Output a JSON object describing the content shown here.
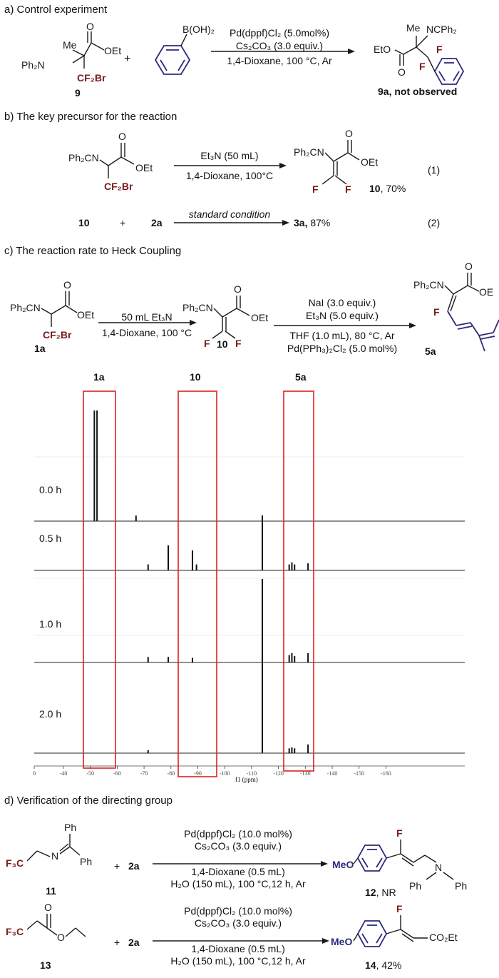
{
  "section_a": {
    "title": "a) Control experiment",
    "conditions": [
      "Pd(dppf)Cl₂ (5.0mol%)",
      "Cs₂CO₃ (3.0 equiv.)",
      "1,4-Dioxane, 100 °C, Ar"
    ],
    "reactant_label": "9",
    "product_label": "9a, not observed",
    "plus": "+"
  },
  "section_b": {
    "title": "b) The key precursor for the reaction",
    "eq1_conditions": [
      "Et₃N (50 mL)",
      "1,4-Dioxane, 100°C"
    ],
    "eq1_product_label": "10",
    "eq1_yield": ", 70%",
    "eq1_number": "(1)",
    "eq2_reactant1": "10",
    "eq2_plus": "+",
    "eq2_reactant2": "2a",
    "eq2_condition": "standard condition",
    "eq2_product": "3a,",
    "eq2_yield": " 87%",
    "eq2_number": "(2)"
  },
  "section_c": {
    "title": "c) The reaction rate to Heck Coupling",
    "step1_conditions": [
      "50 mL Et₃N",
      "1,4-Dioxane, 100 °C"
    ],
    "step2_conditions": [
      "NaI (3.0 equiv.)",
      "Et₃N (5.0 equiv.)",
      "THF (1.0 mL), 80 °C, Ar",
      "Pd(PPh₃)₂Cl₂ (5.0 mol%)"
    ],
    "labels": [
      "1a",
      "10",
      "5a"
    ]
  },
  "spectrum": {
    "column_labels": [
      "1a",
      "10",
      "5a"
    ],
    "times": [
      "0.0 h",
      "0.5 h",
      "1.0 h",
      "2.0 h"
    ],
    "xlabel": "f1 (ppm)",
    "ticks": [
      "0",
      "-40",
      "-50",
      "-60",
      "-70",
      "-80",
      "-90",
      "-100",
      "-110",
      "-120",
      "-130",
      "-140",
      "-150",
      "-160"
    ],
    "spectra": [
      {
        "time": "0.0 h",
        "peaks": [
          {
            "ppm": -51.5,
            "h": 1.0
          },
          {
            "ppm": -52.5,
            "h": 1.0
          },
          {
            "ppm": -67,
            "h": 0.05
          }
        ]
      },
      {
        "time": "0.5 h",
        "peaks": [
          {
            "ppm": -71.5,
            "h": 0.06
          },
          {
            "ppm": -79,
            "h": 0.25
          },
          {
            "ppm": -88,
            "h": 0.2
          },
          {
            "ppm": -89.5,
            "h": 0.06
          },
          {
            "ppm": -114,
            "h": 0.55
          },
          {
            "ppm": -124,
            "h": 0.06
          },
          {
            "ppm": -125,
            "h": 0.08
          },
          {
            "ppm": -126,
            "h": 0.06
          },
          {
            "ppm": -131,
            "h": 0.07
          }
        ]
      },
      {
        "time": "1.0 h",
        "peaks": [
          {
            "ppm": -71.5,
            "h": 0.06
          },
          {
            "ppm": -79,
            "h": 0.06
          },
          {
            "ppm": -88,
            "h": 0.05
          },
          {
            "ppm": -114,
            "h": 0.9
          },
          {
            "ppm": -124,
            "h": 0.08
          },
          {
            "ppm": -125,
            "h": 0.1
          },
          {
            "ppm": -126,
            "h": 0.07
          },
          {
            "ppm": -131,
            "h": 0.1
          }
        ]
      },
      {
        "time": "2.0 h",
        "peaks": [
          {
            "ppm": -71.5,
            "h": 0.03
          },
          {
            "ppm": -114,
            "h": 1.0
          },
          {
            "ppm": -124,
            "h": 0.05
          },
          {
            "ppm": -125,
            "h": 0.06
          },
          {
            "ppm": -126,
            "h": 0.05
          },
          {
            "ppm": -131,
            "h": 0.09
          }
        ]
      }
    ]
  },
  "section_d": {
    "title": "d) Verification of the directing group",
    "conditions": [
      "Pd(dppf)Cl₂ (10.0 mol%)",
      "Cs₂CO₃ (3.0 equiv.)",
      "1,4-Dioxane (0.5 mL)",
      "H₂O (150 mL), 100 °C,12 h, Ar"
    ],
    "r1_label": "11",
    "r1_product_label": "12",
    "r1_result": ", NR",
    "r2_label": "13",
    "r2_product_label": "14",
    "r2_result": ", 42%",
    "plus": "+",
    "partner": "2a"
  }
}
